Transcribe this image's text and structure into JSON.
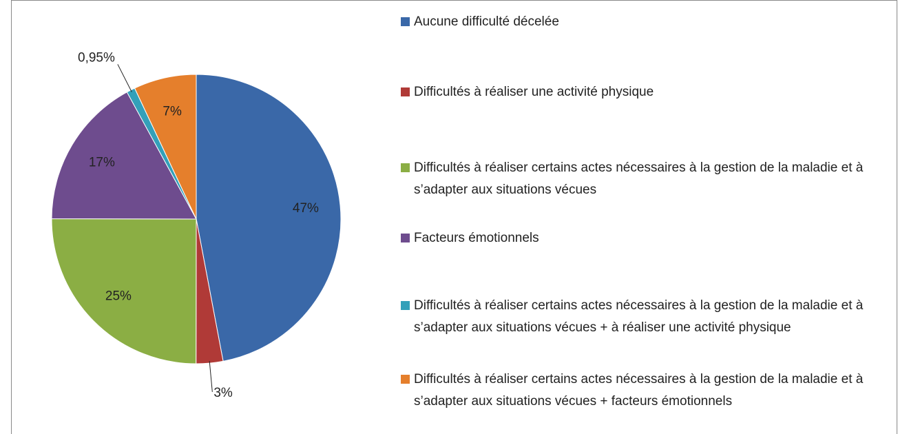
{
  "chart_data": {
    "type": "pie",
    "categories": [
      "Aucune difficulté décelée",
      "Difficultés à réaliser une activité physique",
      "Difficultés à réaliser certains actes nécessaires à la gestion de la maladie et à s’adapter aux situations vécues",
      "Facteurs émotionnels",
      "Difficultés à réaliser certains actes nécessaires à la gestion de la maladie et à s’adapter aux situations vécues +  à réaliser une activité physique",
      "Difficultés à réaliser certains actes nécessaires à la gestion de la maladie et à s’adapter aux situations vécues + facteurs émotionnels"
    ],
    "values": [
      47,
      3,
      25,
      17,
      0.95,
      7
    ],
    "value_labels": [
      "47%",
      "3%",
      "25%",
      "17%",
      "0,95%",
      "7%"
    ],
    "colors": [
      "#3a68a8",
      "#b03a37",
      "#8bae44",
      "#6e4c8e",
      "#33a0b9",
      "#e57f2c"
    ]
  }
}
